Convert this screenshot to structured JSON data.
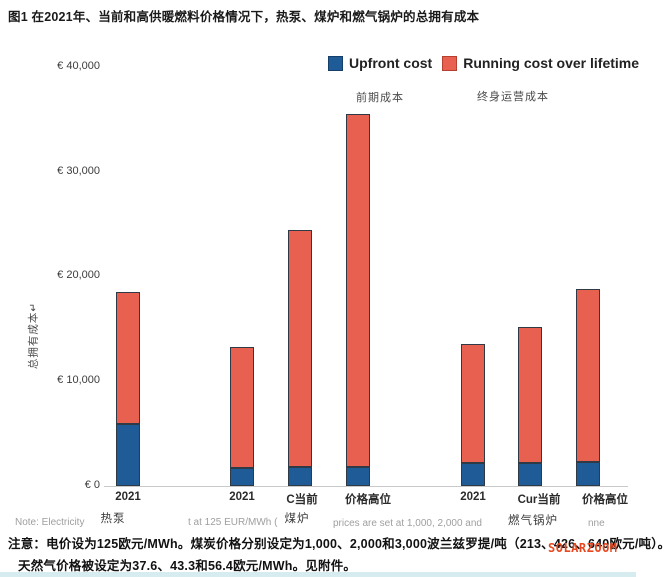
{
  "title": "图1 在2021年、当前和高供暖燃料价格情况下，热泵、煤炉和燃气锅炉的总拥有成本",
  "legend": {
    "upfront_label": "Upfront cost",
    "upfront_label_zh": "前期成本",
    "running_label": "Running cost over lifetime",
    "running_label_zh": "终身运营成本"
  },
  "colors": {
    "upfront_blue": "#1F5B96",
    "running_red": "#E8604F",
    "watermark_red": "#E8481F",
    "axis_gray": "#C9C9C9"
  },
  "y_axis": {
    "title": "总拥有成本↵",
    "ticks": [
      "€ 40,000",
      "€ 30,000",
      "€ 20,000",
      "€ 10,000",
      "€ 0"
    ]
  },
  "x_axis": {
    "bar_labels": [
      "2021",
      "2021",
      "C当前",
      "价格高位",
      "2021",
      "Cur当前",
      "价格高位"
    ],
    "group_labels": [
      "热泵",
      "煤炉",
      "燃气锅炉"
    ]
  },
  "chart_data": {
    "type": "bar",
    "stacked": true,
    "currency": "EUR",
    "title": "图1 在2021年、当前和高供暖燃料价格情况下，热泵、煤炉和燃气锅炉的总拥有成本",
    "ylabel": "总拥有成本",
    "ylim": [
      0,
      40000
    ],
    "y_ticks": [
      "€ 40,000",
      "€ 30,000",
      "€ 20,000",
      "€ 10,000",
      "€ 0"
    ],
    "grid": false,
    "legend_position": "top-right",
    "groups": [
      "热泵",
      "煤炉",
      "燃气锅炉"
    ],
    "categories": [
      "热泵 2021",
      "煤炉 2021",
      "煤炉 当前",
      "煤炉 价格高位",
      "燃气锅炉 2021",
      "燃气锅炉 当前",
      "燃气锅炉 价格高位"
    ],
    "series": [
      {
        "name": "Upfront cost",
        "name_zh": "前期成本",
        "color": "#1F5B96",
        "values": [
          5950,
          1750,
          1800,
          1800,
          2200,
          2200,
          2250
        ]
      },
      {
        "name": "Running cost over lifetime",
        "name_zh": "终身运营成本",
        "color": "#E8604F",
        "values": [
          12600,
          11550,
          22600,
          33700,
          11350,
          13000,
          16600
        ]
      }
    ],
    "totals": [
      18550,
      13300,
      24400,
      35500,
      13550,
      15200,
      18850
    ]
  },
  "english_remnants": [
    "Note: Electricity",
    "t at 125 EUR/MWh  (",
    "prices are set at 1,000, 2,000 and",
    "nne"
  ],
  "notes": {
    "line1": "注意：电价设为125欧元/MWh。煤炭价格分别设定为1,000、2,000和3,000波兰兹罗提/吨（213、426、640欧元/吨）。",
    "line2": "天然气价格被设定为37.6、43.3和56.4欧元/MWh。见附件。"
  },
  "watermark": "SOLARZOOM"
}
